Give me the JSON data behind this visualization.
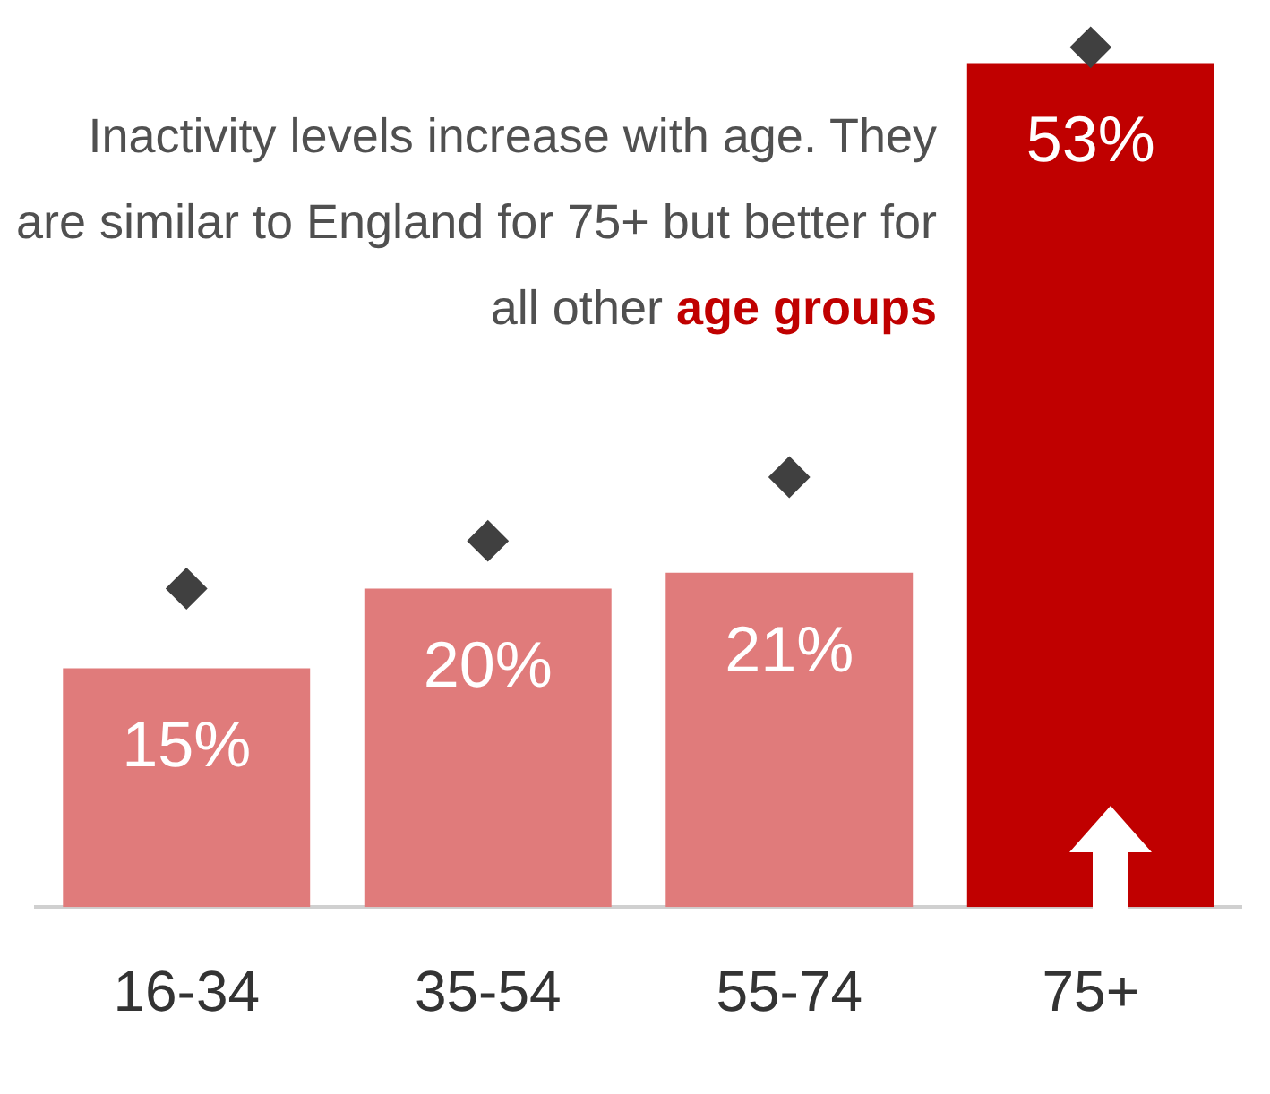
{
  "chart_data": {
    "type": "bar",
    "categories": [
      "16-34",
      "35-54",
      "55-74",
      "75+"
    ],
    "series": [
      {
        "colors": [
          "#e07b7b",
          "#e07b7b",
          "#e07b7b",
          "#c00000"
        ],
        "values": [
          15,
          20,
          21,
          53
        ],
        "value_labels": [
          "15%",
          "20%",
          "21%",
          "53%"
        ]
      },
      {
        "type": "scatter",
        "x": [
          "16-34",
          "35-54",
          "55-74",
          "75+"
        ],
        "color": "#404040",
        "values": [
          20,
          23,
          27,
          54
        ]
      }
    ],
    "marker": "diamond",
    "grid": false,
    "legend": false,
    "annotations": [
      "Inactivity levels increase with age. They are similar to England for 75+ but better for all other",
      "age groups"
    ]
  }
}
